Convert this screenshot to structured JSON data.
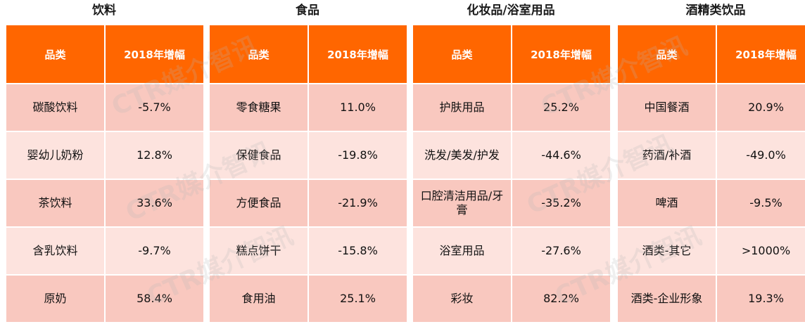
{
  "chart_data": [
    {
      "type": "table",
      "title": "饮料",
      "columns": [
        "品类",
        "2018年增幅"
      ],
      "rows": [
        {
          "category": "碳酸饮料",
          "value": "-5.7%"
        },
        {
          "category": "婴幼儿奶粉",
          "value": "12.8%"
        },
        {
          "category": "茶饮料",
          "value": "33.6%"
        },
        {
          "category": "含乳饮料",
          "value": "-9.7%"
        },
        {
          "category": "原奶",
          "value": "58.4%"
        }
      ]
    },
    {
      "type": "table",
      "title": "食品",
      "columns": [
        "品类",
        "2018年增幅"
      ],
      "rows": [
        {
          "category": "零食糖果",
          "value": "11.0%"
        },
        {
          "category": "保健食品",
          "value": "-19.8%"
        },
        {
          "category": "方便食品",
          "value": "-21.9%"
        },
        {
          "category": "糕点饼干",
          "value": "-15.8%"
        },
        {
          "category": "食用油",
          "value": "25.1%"
        }
      ]
    },
    {
      "type": "table",
      "title": "化妆品/浴室用品",
      "columns": [
        "品类",
        "2018年增幅"
      ],
      "rows": [
        {
          "category": "护肤用品",
          "value": "25.2%"
        },
        {
          "category": "洗发/美发/护发",
          "value": "-44.6%"
        },
        {
          "category": "口腔清洁用品/牙膏",
          "value": "-35.2%"
        },
        {
          "category": "浴室用品",
          "value": "-27.6%"
        },
        {
          "category": "彩妆",
          "value": "82.2%"
        }
      ]
    },
    {
      "type": "table",
      "title": "酒精类饮品",
      "columns": [
        "品类",
        "2018年增幅"
      ],
      "rows": [
        {
          "category": "中国餐酒",
          "value": "20.9%"
        },
        {
          "category": "药酒/补酒",
          "value": "-49.0%"
        },
        {
          "category": "啤酒",
          "value": "-9.5%"
        },
        {
          "category": "酒类-其它",
          "value": ">1000%"
        },
        {
          "category": "酒类-企业形象",
          "value": "19.3%"
        }
      ]
    }
  ],
  "watermark_text": "CTR媒介智讯",
  "colors": {
    "header_bg": "#ff6600",
    "row_odd_bg": "#f9c8bf",
    "row_even_bg": "#fde3de"
  }
}
